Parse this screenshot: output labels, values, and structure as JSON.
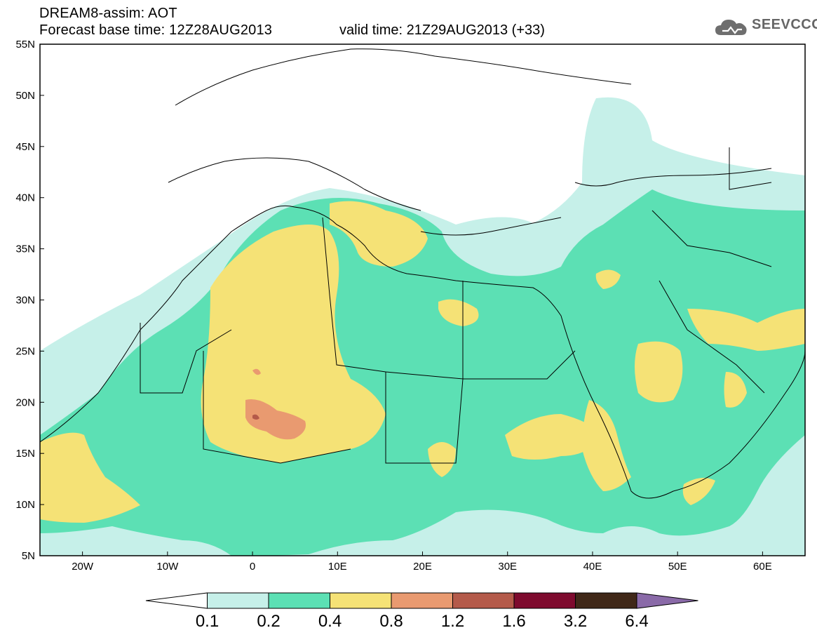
{
  "header": {
    "title": "DREAM8-assim: AOT",
    "forecast_base": "Forecast base time: 12Z28AUG2013",
    "valid_time": "valid time: 21Z29AUG2013 (+33)",
    "logo_text": "SEEVCCC",
    "logo_icon": "cloud-icon"
  },
  "axes": {
    "lat_labels": [
      "55N",
      "50N",
      "45N",
      "40N",
      "35N",
      "30N",
      "25N",
      "20N",
      "15N",
      "10N",
      "5N"
    ],
    "lon_labels": [
      "20W",
      "10W",
      "0",
      "10E",
      "20E",
      "30E",
      "40E",
      "50E",
      "60E"
    ]
  },
  "map": {
    "lat_range": [
      5,
      55
    ],
    "lon_range": [
      -25,
      65
    ],
    "field": "AOT"
  },
  "colorbar": {
    "labels": [
      "0.1",
      "0.2",
      "0.4",
      "0.8",
      "1.2",
      "1.6",
      "3.2",
      "6.4"
    ],
    "colors": [
      "#ffffff",
      "#c6f0e9",
      "#5ce0b4",
      "#f5e276",
      "#e99a70",
      "#b45a4a",
      "#7e0a2e",
      "#402818",
      "#8a6aa8"
    ]
  }
}
